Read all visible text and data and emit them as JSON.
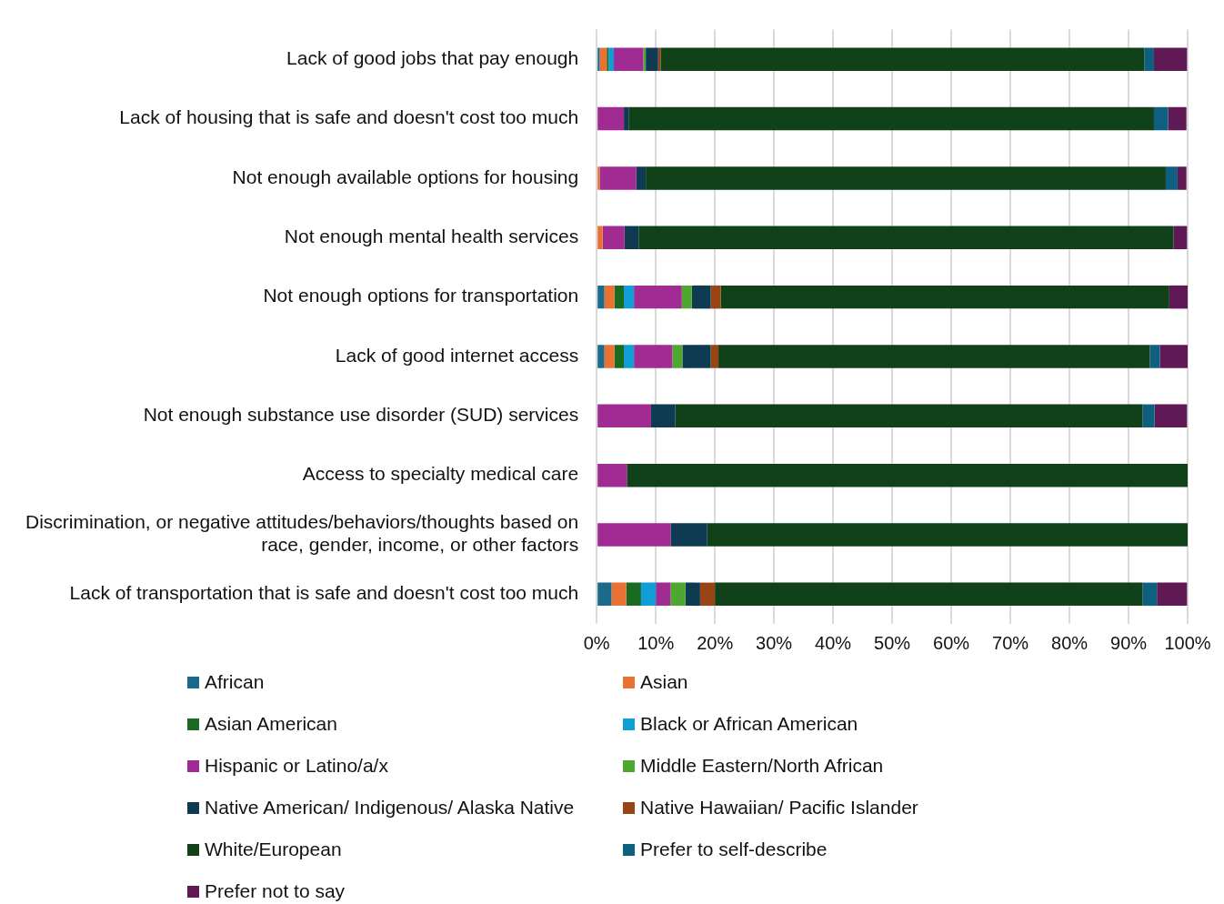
{
  "chart_data": {
    "type": "bar",
    "orientation": "horizontal",
    "stacked": true,
    "grid": "x",
    "legend": "bottom",
    "categories": [
      "Lack of good jobs that pay enough",
      "Lack of housing that is safe and doesn't cost too much",
      "Not enough available options for housing",
      "Not enough mental health services",
      "Not enough options for transportation",
      "Lack of good internet access",
      "Not enough substance use disorder (SUD) services",
      "Access to specialty medical care",
      "Discrimination, or negative attitudes/behaviors/thoughts based on race, gender, income, or other factors",
      "Lack of transportation that is safe and doesn't cost too much"
    ],
    "xlim": [
      0,
      100
    ],
    "xticks": [
      {
        "value": 0,
        "label": "0%"
      },
      {
        "value": 10,
        "label": "10%"
      },
      {
        "value": 20,
        "label": "20%"
      },
      {
        "value": 30,
        "label": "30%"
      },
      {
        "value": 40,
        "label": "40%"
      },
      {
        "value": 50,
        "label": "50%"
      },
      {
        "value": 60,
        "label": "60%"
      },
      {
        "value": 70,
        "label": "70%"
      },
      {
        "value": 80,
        "label": "80%"
      },
      {
        "value": 90,
        "label": "90%"
      },
      {
        "value": 100,
        "label": "100%"
      }
    ],
    "series": [
      {
        "name": "African",
        "color": "#1b6a8c",
        "values": [
          0.5,
          0,
          0,
          0,
          1.3,
          1.3,
          0,
          0,
          0,
          2.5
        ]
      },
      {
        "name": "Asian",
        "color": "#e97132",
        "values": [
          1.2,
          0,
          0.5,
          1.0,
          1.7,
          1.7,
          0,
          0,
          0,
          2.5
        ]
      },
      {
        "name": "Asian American",
        "color": "#196b24",
        "values": [
          0.3,
          0,
          0,
          0,
          1.6,
          1.6,
          0,
          0,
          0,
          2.5
        ]
      },
      {
        "name": "Black or African American",
        "color": "#0f9ed5",
        "values": [
          0.9,
          0,
          0,
          0,
          1.7,
          1.7,
          0,
          0,
          0,
          2.5
        ]
      },
      {
        "name": "Hispanic or Latino/a/x",
        "color": "#a02b93",
        "values": [
          5.0,
          4.6,
          6.2,
          3.7,
          8.1,
          6.5,
          9.2,
          5.1,
          12.5,
          2.5
        ]
      },
      {
        "name": "Middle Eastern/North African",
        "color": "#4ea72e",
        "values": [
          0.4,
          0,
          0,
          0,
          1.7,
          1.7,
          0,
          0,
          0,
          2.5
        ]
      },
      {
        "name": "Native American/ Indigenous/ Alaska Native",
        "color": "#0e3a52",
        "values": [
          2.1,
          0.8,
          1.6,
          2.4,
          3.2,
          4.8,
          4.1,
          0,
          6.2,
          2.5
        ]
      },
      {
        "name": "Native Hawaiian/ Pacific Islander",
        "color": "#984414",
        "values": [
          0.4,
          0,
          0,
          0,
          1.7,
          1.3,
          0,
          0,
          0,
          2.5
        ]
      },
      {
        "name": "White/European",
        "color": "#114119",
        "values": [
          81.9,
          88.9,
          88.0,
          90.5,
          75.9,
          73.0,
          79.1,
          94.9,
          81.3,
          72.4
        ]
      },
      {
        "name": "Prefer to self-describe",
        "color": "#0f5f81",
        "values": [
          1.6,
          2.4,
          2.0,
          0,
          0,
          1.7,
          2.0,
          0,
          0,
          2.4
        ]
      },
      {
        "name": "Prefer not to say",
        "color": "#5f1a56",
        "values": [
          5.6,
          3.1,
          1.5,
          2.3,
          3.1,
          4.7,
          5.5,
          0,
          0,
          5.1
        ]
      }
    ]
  }
}
